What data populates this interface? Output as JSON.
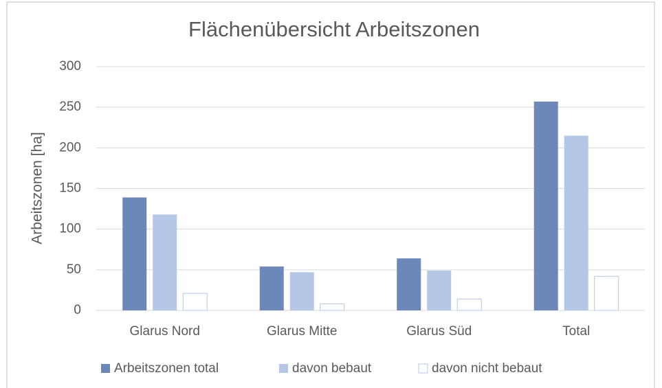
{
  "chart_data": {
    "type": "bar",
    "title": "Flächenübersicht Arbeitszonen",
    "y_label": "Arbeitszonen [ha]",
    "categories": [
      "Glarus Nord",
      "Glarus Mitte",
      "Glarus Süd",
      "Total"
    ],
    "series": [
      {
        "name": "Arbeitszonen total",
        "color": "#6b88b8",
        "values": [
          139,
          54,
          64,
          257
        ]
      },
      {
        "name": "davon bebaut",
        "color": "#b4c7e7",
        "values": [
          118,
          47,
          49,
          215
        ]
      },
      {
        "name": "davon nicht bebaut",
        "color": "#ffffff",
        "values": [
          21,
          8,
          14,
          42
        ]
      }
    ],
    "ylim": [
      0,
      300
    ],
    "yticks": [
      0,
      50,
      100,
      150,
      200,
      250,
      300
    ],
    "grid": true,
    "legend": "bottom"
  }
}
